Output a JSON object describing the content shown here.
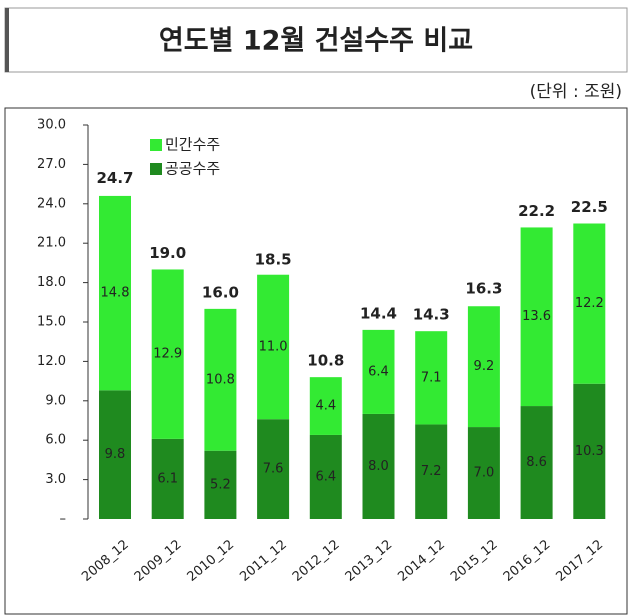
{
  "title": "연도별 12월 건설수주 비교",
  "unit": "(단위 : 조원)",
  "chart_data": {
    "type": "stacked_bar",
    "categories": [
      "2008_12",
      "2009_12",
      "2010_12",
      "2011_12",
      "2012_12",
      "2013_12",
      "2014_12",
      "2015_12",
      "2016_12",
      "2017_12"
    ],
    "series": [
      {
        "name": "공공수주",
        "color": "#1f8a1f",
        "values": [
          9.8,
          6.1,
          5.2,
          7.6,
          6.4,
          8.0,
          7.2,
          7.0,
          8.6,
          10.3
        ],
        "value_labels": [
          "9.8",
          "6.1",
          "5.2",
          "7.6",
          "6.4",
          "8.0",
          "7.2",
          "7.0",
          "8.6",
          "10.3"
        ]
      },
      {
        "name": "민간수주",
        "color": "#33ea33",
        "values": [
          14.8,
          12.9,
          10.8,
          11.0,
          4.4,
          6.4,
          7.1,
          9.2,
          13.6,
          12.2
        ],
        "value_labels": [
          "14.8",
          "12.9",
          "10.8",
          "11.0",
          "4.4",
          "6.4",
          "7.1",
          "9.2",
          "13.6",
          "12.2"
        ]
      }
    ],
    "totals": {
      "values": [
        24.7,
        19.0,
        16.0,
        18.5,
        10.8,
        14.4,
        14.3,
        16.3,
        22.2,
        22.5
      ],
      "value_labels": [
        "24.7",
        "19.0",
        "16.0",
        "18.5",
        "10.8",
        "14.4",
        "14.3",
        "16.3",
        "22.2",
        "22.5"
      ]
    },
    "ylim": [
      0,
      30
    ],
    "yticks": [
      {
        "value": 0,
        "label": "–"
      },
      {
        "value": 3,
        "label": "3.0"
      },
      {
        "value": 6,
        "label": "6.0"
      },
      {
        "value": 9,
        "label": "9.0"
      },
      {
        "value": 12,
        "label": "12.0"
      },
      {
        "value": 15,
        "label": "15.0"
      },
      {
        "value": 18,
        "label": "18.0"
      },
      {
        "value": 21,
        "label": "21.0"
      },
      {
        "value": 24,
        "label": "24.0"
      },
      {
        "value": 27,
        "label": "27.0"
      },
      {
        "value": 30,
        "label": "30.0"
      }
    ]
  }
}
